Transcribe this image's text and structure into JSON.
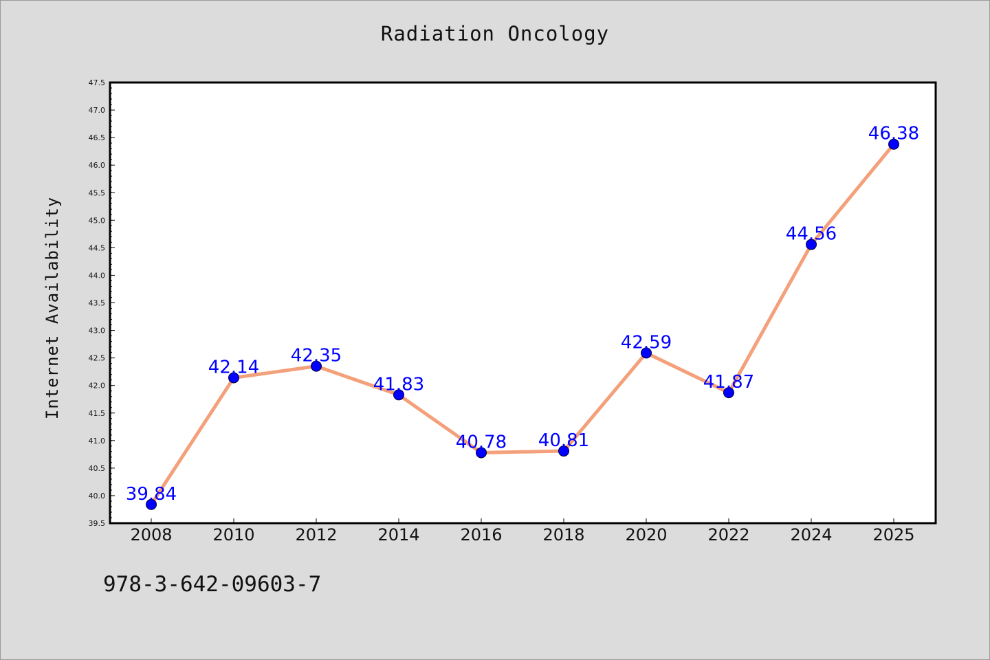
{
  "colors": {
    "background": "#dcdcdc",
    "plot_background": "#ffffff",
    "line": "#f4a07a",
    "marker": "#0000ff",
    "data_label": "#0000ff",
    "axis": "#000000"
  },
  "footnote": "978-3-642-09603-7",
  "chart_data": {
    "type": "line",
    "title": "Radiation Oncology",
    "xlabel": "",
    "ylabel": "Internet Availability",
    "categories": [
      "2008",
      "2010",
      "2012",
      "2014",
      "2016",
      "2018",
      "2020",
      "2022",
      "2024",
      "2025"
    ],
    "series": [
      {
        "values": [
          39.84,
          42.14,
          42.35,
          41.83,
          40.78,
          40.81,
          42.59,
          41.87,
          44.56,
          46.38
        ]
      }
    ],
    "ylim": [
      39.5,
      47.5
    ],
    "yticks": [
      "39.5",
      "40.0",
      "40.5",
      "41.0",
      "41.5",
      "42.0",
      "42.5",
      "43.0",
      "43.5",
      "44.0",
      "44.5",
      "45.0",
      "45.5",
      "46.0",
      "46.5",
      "47.0",
      "47.5"
    ],
    "data_labels": [
      "39.84",
      "42.14",
      "42.35",
      "41.83",
      "40.78",
      "40.81",
      "42.59",
      "41.87",
      "44.56",
      "46.38"
    ],
    "grid": false,
    "legend": "none"
  }
}
